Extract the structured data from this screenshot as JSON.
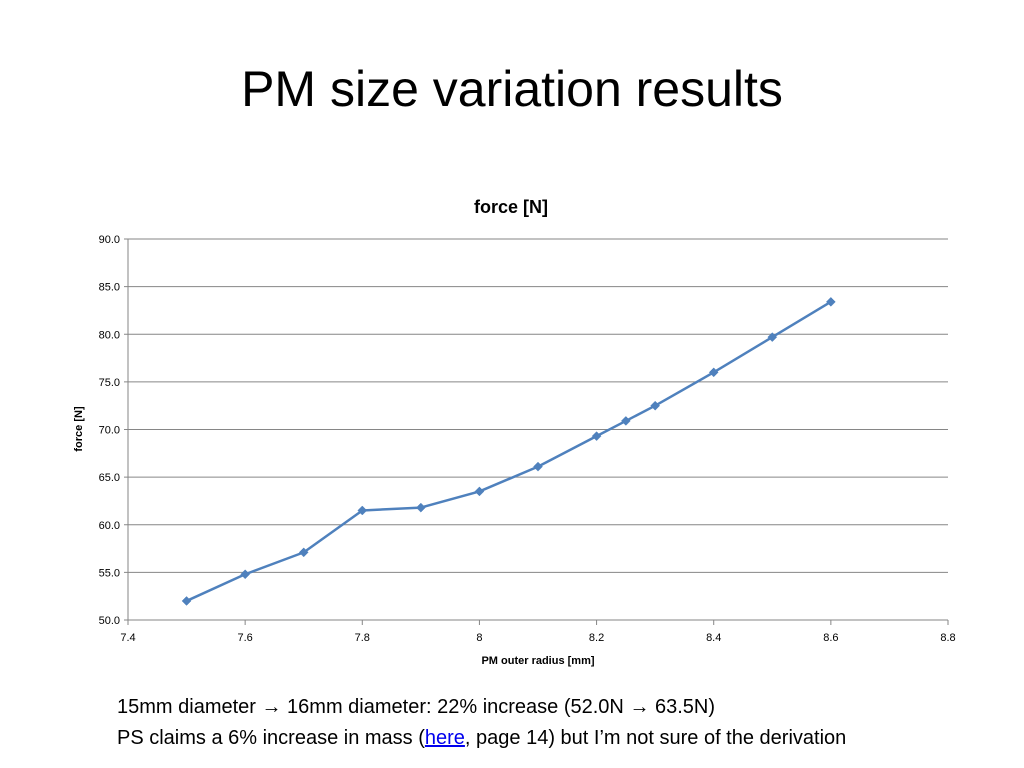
{
  "slide": {
    "title": "PM size variation results"
  },
  "footer": {
    "line1": {
      "part1": "15mm diameter ",
      "arrow1": "→",
      "part2": " 16mm diameter: 22% increase (52.0N ",
      "arrow2": "→",
      "part3": " 63.5N)"
    },
    "line2": {
      "before": "PS claims a 6% increase in mass (",
      "link": "here",
      "after": ", page 14) but I’m not sure of the derivation"
    }
  },
  "colors": {
    "series": "#4f81bd",
    "grid": "#868686",
    "link": "#0000ee"
  },
  "chart_data": {
    "type": "line",
    "title": "force [N]",
    "xlabel": "PM outer radius [mm]",
    "ylabel": "force [N]",
    "xlim": [
      7.4,
      8.8
    ],
    "ylim": [
      50.0,
      90.0
    ],
    "xticks": [
      7.4,
      7.6,
      7.8,
      8.0,
      8.2,
      8.4,
      8.6,
      8.8
    ],
    "xtick_labels": [
      "7.4",
      "7.6",
      "7.8",
      "8",
      "8.2",
      "8.4",
      "8.6",
      "8.8"
    ],
    "yticks": [
      50.0,
      55.0,
      60.0,
      65.0,
      70.0,
      75.0,
      80.0,
      85.0,
      90.0
    ],
    "ytick_labels": [
      "50.0",
      "55.0",
      "60.0",
      "65.0",
      "70.0",
      "75.0",
      "80.0",
      "85.0",
      "90.0"
    ],
    "grid": "horizontal",
    "legend": "none",
    "marker": "diamond",
    "series": [
      {
        "x": [
          7.5,
          7.6,
          7.7,
          7.8,
          7.9,
          8.0,
          8.1,
          8.2,
          8.25,
          8.3,
          8.4,
          8.5,
          8.6
        ],
        "y": [
          52.0,
          54.8,
          57.1,
          61.5,
          61.8,
          63.5,
          66.1,
          69.3,
          70.9,
          72.5,
          76.0,
          79.7,
          83.4
        ]
      }
    ]
  }
}
